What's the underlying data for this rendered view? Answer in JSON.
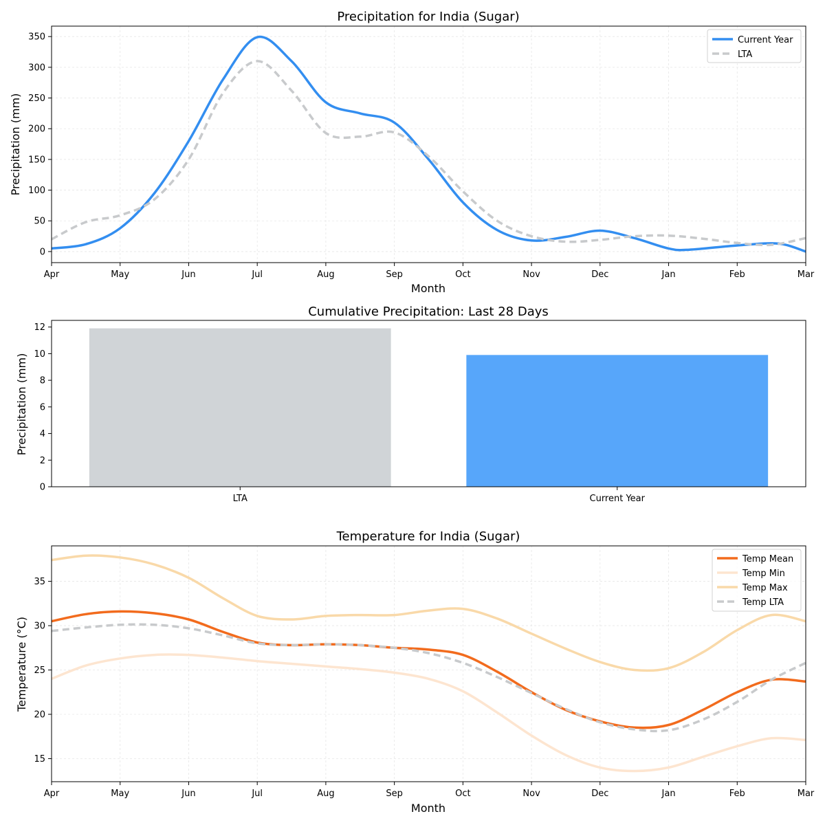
{
  "colors": {
    "current_year": "#338ef0",
    "lta_line": "#c8cacc",
    "lta_bar": "#d0d4d7",
    "current_bar": "#57a6fa",
    "temp_mean": "#f26b1d",
    "temp_min": "#fde5d0",
    "temp_max": "#f9d9a9",
    "temp_lta": "#c8cacc"
  },
  "chart_data": [
    {
      "id": "precip",
      "type": "line",
      "title": "Precipitation for India (Sugar)",
      "xlabel": "Month",
      "ylabel": "Precipitation (mm)",
      "categories": [
        "Apr",
        "May",
        "Jun",
        "Jul",
        "Aug",
        "Sep",
        "Oct",
        "Nov",
        "Dec",
        "Jan",
        "Feb",
        "Mar"
      ],
      "ylim": [
        -18,
        367
      ],
      "yticks": [
        0,
        50,
        100,
        150,
        200,
        250,
        300,
        350
      ],
      "grid": true,
      "legend": "top-right",
      "series": [
        {
          "name": "Current Year",
          "style": "solid",
          "color_key": "current_year",
          "x": [
            0,
            0.5,
            1,
            1.5,
            2,
            2.5,
            3,
            3.5,
            4,
            4.5,
            5,
            5.5,
            6,
            6.5,
            7,
            7.5,
            8,
            8.5,
            9,
            9.3,
            10,
            10.6,
            11
          ],
          "values": [
            5,
            12,
            38,
            95,
            180,
            280,
            349,
            310,
            243,
            225,
            210,
            150,
            80,
            35,
            18,
            24,
            34,
            22,
            5,
            3,
            10,
            13,
            0
          ]
        },
        {
          "name": "LTA",
          "style": "dashed",
          "color_key": "lta_line",
          "x": [
            0,
            0.5,
            1,
            1.5,
            2,
            2.5,
            3,
            3.5,
            4,
            4.5,
            5,
            5.5,
            6,
            6.5,
            7,
            7.5,
            8,
            8.5,
            9,
            9.5,
            10,
            10.5,
            11
          ],
          "values": [
            20,
            48,
            59,
            85,
            150,
            258,
            310,
            262,
            193,
            187,
            194,
            155,
            98,
            50,
            25,
            16,
            19,
            25,
            26,
            21,
            14,
            11,
            22
          ]
        }
      ]
    },
    {
      "id": "cumulative",
      "type": "bar",
      "title": "Cumulative Precipitation: Last 28 Days",
      "xlabel": "",
      "ylabel": "Precipitation (mm)",
      "categories": [
        "LTA",
        "Current Year"
      ],
      "values": [
        11.9,
        9.9
      ],
      "ylim": [
        0,
        12.5
      ],
      "yticks": [
        0,
        2,
        4,
        6,
        8,
        10,
        12
      ],
      "grid": false
    },
    {
      "id": "temp",
      "type": "line",
      "title": "Temperature for India (Sugar)",
      "xlabel": "Month",
      "ylabel": "Temperature (°C)",
      "categories": [
        "Apr",
        "May",
        "Jun",
        "Jul",
        "Aug",
        "Sep",
        "Oct",
        "Nov",
        "Dec",
        "Jan",
        "Feb",
        "Mar"
      ],
      "ylim": [
        12.4,
        39
      ],
      "yticks": [
        15,
        20,
        25,
        30,
        35
      ],
      "grid": true,
      "legend": "top-right",
      "series": [
        {
          "name": "Temp Mean",
          "style": "solid",
          "color_key": "temp_mean",
          "x": [
            0,
            0.5,
            1,
            1.5,
            2,
            2.5,
            3,
            3.5,
            4,
            4.5,
            5,
            5.5,
            6,
            6.5,
            7,
            7.5,
            8,
            8.5,
            9,
            9.5,
            10,
            10.5,
            11
          ],
          "values": [
            30.5,
            31.3,
            31.6,
            31.4,
            30.7,
            29.3,
            28.1,
            27.8,
            27.9,
            27.8,
            27.5,
            27.3,
            26.7,
            24.8,
            22.5,
            20.5,
            19.2,
            18.5,
            18.8,
            20.5,
            22.5,
            23.9,
            23.7
          ]
        },
        {
          "name": "Temp Min",
          "style": "solid",
          "color_key": "temp_min",
          "x": [
            0,
            0.5,
            1,
            1.5,
            2,
            2.5,
            3,
            3.5,
            4,
            4.5,
            5,
            5.5,
            6,
            6.5,
            7,
            7.5,
            8,
            8.5,
            9,
            9.5,
            10,
            10.5,
            11
          ],
          "values": [
            24.0,
            25.5,
            26.3,
            26.7,
            26.7,
            26.4,
            26.0,
            25.7,
            25.4,
            25.1,
            24.7,
            24.0,
            22.6,
            20.2,
            17.6,
            15.4,
            14.0,
            13.6,
            14.0,
            15.2,
            16.4,
            17.3,
            17.1
          ]
        },
        {
          "name": "Temp Max",
          "style": "solid",
          "color_key": "temp_max",
          "x": [
            0,
            0.5,
            1,
            1.5,
            2,
            2.5,
            3,
            3.5,
            4,
            4.5,
            5,
            5.5,
            6,
            6.5,
            7,
            7.5,
            8,
            8.5,
            9,
            9.5,
            10,
            10.5,
            11
          ],
          "values": [
            37.4,
            37.9,
            37.7,
            36.9,
            35.4,
            33.1,
            31.1,
            30.7,
            31.1,
            31.2,
            31.2,
            31.7,
            31.9,
            30.8,
            29.1,
            27.4,
            25.9,
            25.0,
            25.2,
            27.0,
            29.5,
            31.2,
            30.5
          ]
        },
        {
          "name": "Temp LTA",
          "style": "dashed",
          "color_key": "temp_lta",
          "x": [
            0,
            0.5,
            1,
            1.5,
            2,
            2.5,
            3,
            3.5,
            4,
            4.5,
            5,
            5.5,
            6,
            6.5,
            7,
            7.5,
            8,
            8.5,
            9,
            9.5,
            10,
            10.5,
            11
          ],
          "values": [
            29.4,
            29.8,
            30.1,
            30.1,
            29.7,
            28.9,
            28.0,
            27.8,
            27.9,
            27.8,
            27.5,
            26.9,
            25.8,
            24.2,
            22.4,
            20.6,
            19.1,
            18.3,
            18.2,
            19.4,
            21.4,
            23.9,
            25.8
          ]
        }
      ]
    }
  ]
}
